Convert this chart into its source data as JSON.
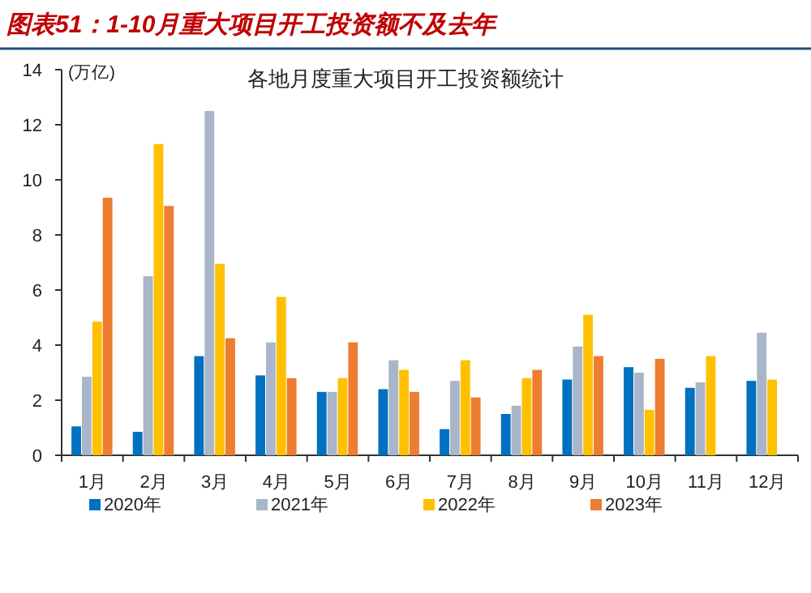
{
  "chart_data": {
    "type": "bar",
    "title": "图表51：1-10月重大项目开工投资额不及去年",
    "subtitle": "各地月度重大项目开工投资额统计",
    "ylabel": "(万亿)",
    "categories": [
      "1月",
      "2月",
      "3月",
      "4月",
      "5月",
      "6月",
      "7月",
      "8月",
      "9月",
      "10月",
      "11月",
      "12月"
    ],
    "series": [
      {
        "name": "2020年",
        "color": "#0070c0",
        "values": [
          1.05,
          0.85,
          3.6,
          2.9,
          2.3,
          2.4,
          0.95,
          1.5,
          2.75,
          3.2,
          2.45,
          2.7
        ]
      },
      {
        "name": "2021年",
        "color": "#a9b6c9",
        "values": [
          2.85,
          6.5,
          12.5,
          4.1,
          2.3,
          3.45,
          2.7,
          1.8,
          3.95,
          3.0,
          2.65,
          4.45
        ]
      },
      {
        "name": "2022年",
        "color": "#ffc000",
        "values": [
          4.85,
          11.3,
          6.95,
          5.75,
          2.8,
          3.1,
          3.45,
          2.8,
          5.1,
          1.65,
          3.6,
          2.75
        ]
      },
      {
        "name": "2023年",
        "color": "#ed7d31",
        "values": [
          9.35,
          9.05,
          4.25,
          2.8,
          4.1,
          2.3,
          2.1,
          3.1,
          3.6,
          3.5,
          null,
          null
        ]
      }
    ],
    "ylim": [
      0,
      14
    ],
    "yticks": [
      0,
      2,
      4,
      6,
      8,
      10,
      12,
      14
    ],
    "grid": false,
    "legend": "bottom"
  }
}
